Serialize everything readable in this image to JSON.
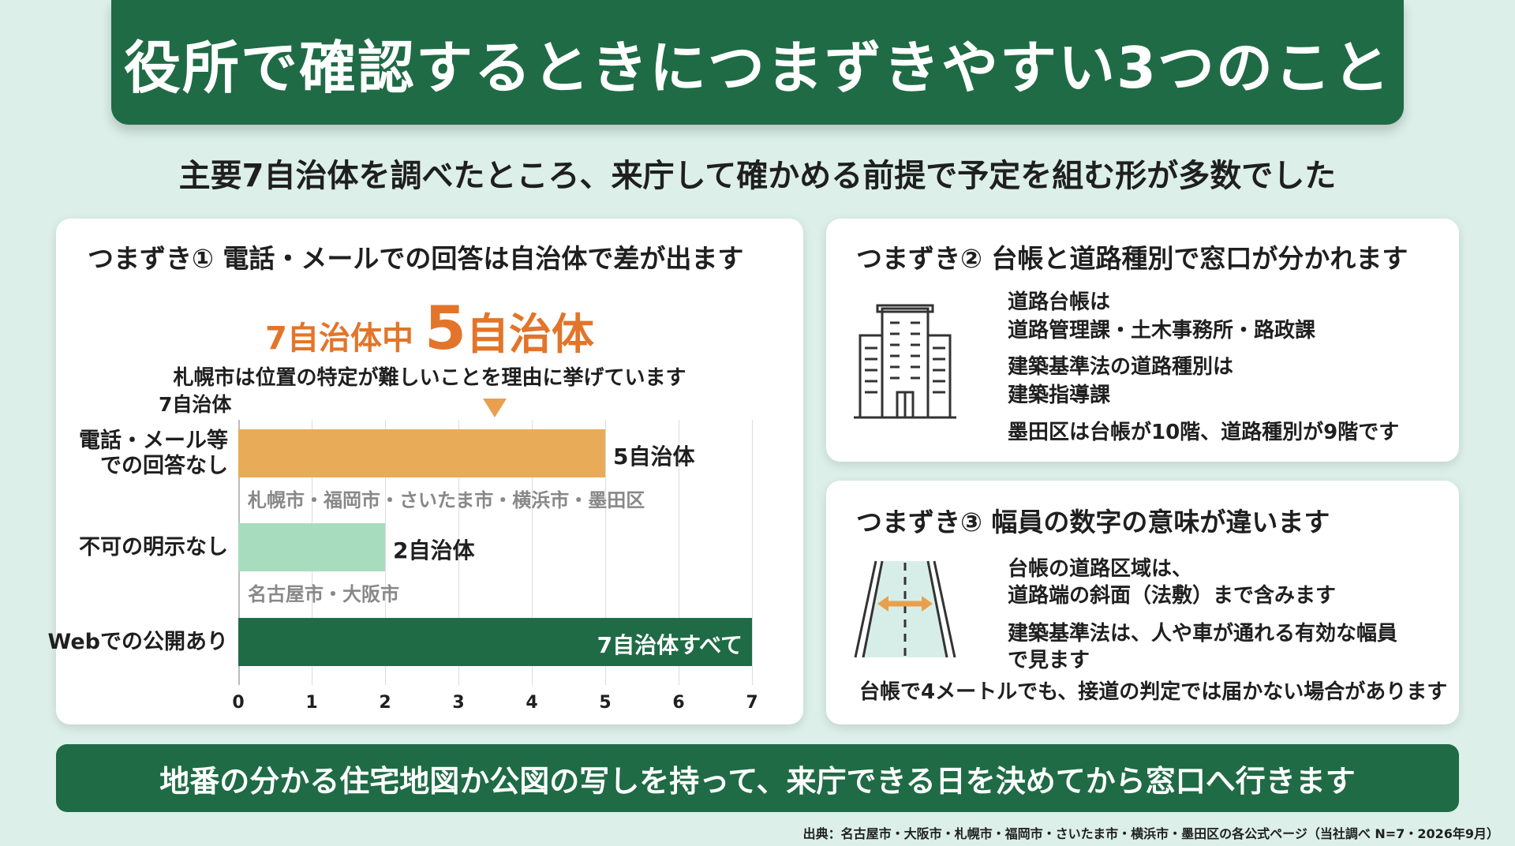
{
  "title": "役所で確認するときにつまずきやすい3つのこと",
  "subtitle": "主要7自治体を調べたところ、来庁して確かめる前提で予定を組む形が多数でした",
  "card1": {
    "title": "つまずき①  電話・メールでの回答は自治体で差が出ます",
    "highlight_prefix": "7自治体中 ",
    "highlight_number": "5",
    "highlight_unit": "自治体",
    "note": "札幌市は位置の特定が難しいことを理由に挙げています",
    "axis_caption": "7自治体"
  },
  "chart_data": {
    "type": "bar",
    "orientation": "horizontal",
    "categories": [
      "電話・メール等での回答なし",
      "不可の明示なし",
      "Webでの公開あり"
    ],
    "category_label_lines": [
      [
        "電話・メール等",
        "での回答なし"
      ],
      [
        "不可の明示なし"
      ],
      [
        "Webでの公開あり"
      ]
    ],
    "values": [
      5,
      2,
      7
    ],
    "value_labels": [
      "5自治体",
      "2自治体",
      "7自治体すべて"
    ],
    "members": [
      "札幌市・福岡市・さいたま市・横浜市・墨田区",
      "名古屋市・大阪市",
      ""
    ],
    "colors": [
      "#e8ab58",
      "#a8dcbe",
      "#1f6b45"
    ],
    "xlim": [
      0,
      7
    ],
    "ticks": [
      "0",
      "1",
      "2",
      "3",
      "4",
      "5",
      "6",
      "7"
    ],
    "grid": true,
    "legend": "none"
  },
  "card2": {
    "title": "つまずき②  台帳と道路種別で窓口が分かれます",
    "line1": "道路台帳は",
    "line2": "道路管理課・土木事務所・路政課",
    "line3": "建築基準法の道路種別は",
    "line4": "建築指導課",
    "line5": "墨田区は台帳が10階、道路種別が9階です",
    "icon": "building-icon"
  },
  "card3": {
    "title": "つまずき③  幅員の数字の意味が違います",
    "line1": "台帳の道路区域は、",
    "line2": "道路端の斜面（法敷）まで含みます",
    "line3": "建築基準法は、人や車が通れる有効な幅員",
    "line4": "で見ます",
    "line5": "台帳で4メートルでも、接道の判定では届かない場合があります",
    "icon": "road-width-icon"
  },
  "footer": "地番の分かる住宅地図か公図の写しを持って、来庁できる日を決めてから窓口へ行きます",
  "source": "出典：名古屋市・大阪市・札幌市・福岡市・さいたま市・横浜市・墨田区の各公式ページ（当社調べ N=7・2026年9月）",
  "colors": {
    "primary_green": "#1f6b45",
    "accent_orange": "#e2752a",
    "background": "#dcefe9"
  }
}
